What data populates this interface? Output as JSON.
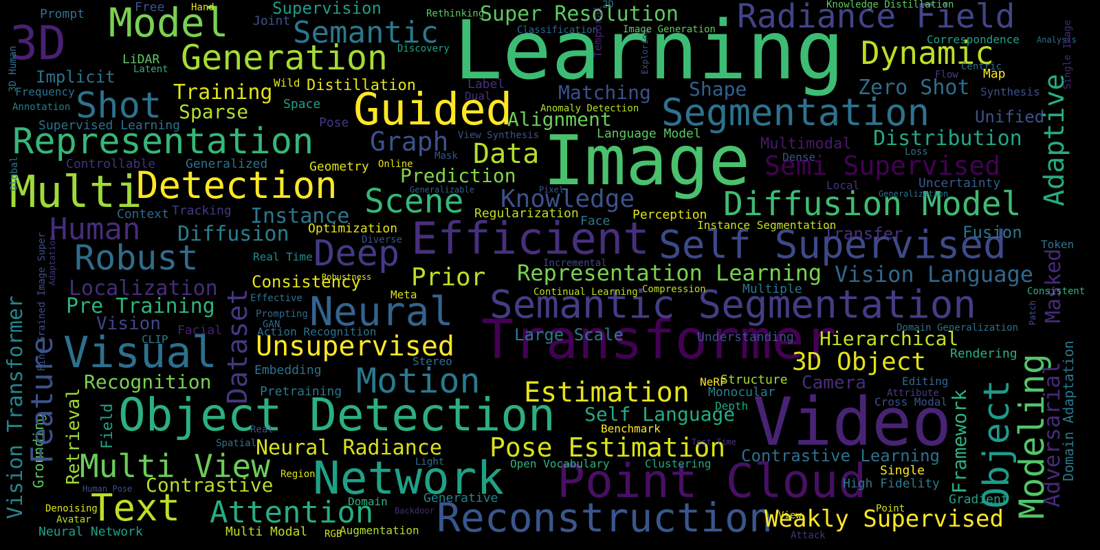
{
  "words": [
    {
      "text": "Learning",
      "color": "#3dbc74"
    },
    {
      "text": "Image",
      "color": "#4ac16d"
    },
    {
      "text": "Video",
      "color": "#482374"
    },
    {
      "text": "Object Detection",
      "color": "#2bb07f"
    },
    {
      "text": "Transformer",
      "color": "#440154"
    },
    {
      "text": "Semantic Segmentation",
      "color": "#433d84"
    },
    {
      "text": "Reconstruction",
      "color": "#39568c"
    },
    {
      "text": "Point Cloud",
      "color": "#471063"
    },
    {
      "text": "Efficient",
      "color": "#472f7d"
    },
    {
      "text": "Network",
      "color": "#1fa187"
    },
    {
      "text": "Neural",
      "color": "#33638d"
    },
    {
      "text": "Visual",
      "color": "#2d708e"
    },
    {
      "text": "Self Supervised",
      "color": "#3e4989"
    },
    {
      "text": "Segmentation",
      "color": "#2c728e"
    },
    {
      "text": "Diffusion Model",
      "color": "#3fbc73"
    },
    {
      "text": "Detection",
      "color": "#fde725"
    },
    {
      "text": "Guided",
      "color": "#fde725"
    },
    {
      "text": "Representation",
      "color": "#35b779"
    },
    {
      "text": "Multi",
      "color": "#a0da39"
    },
    {
      "text": "Generation",
      "color": "#a5db36"
    },
    {
      "text": "Model",
      "color": "#7ad151"
    },
    {
      "text": "3D",
      "color": "#482173"
    },
    {
      "text": "Semantic",
      "color": "#2a788e"
    },
    {
      "text": "Radiance Field",
      "color": "#414487"
    },
    {
      "text": "Dynamic",
      "color": "#bddf26"
    },
    {
      "text": "Text",
      "color": "#bddf26"
    },
    {
      "text": "Attention",
      "color": "#26ad81"
    },
    {
      "text": "Multi View",
      "color": "#6ccd5a"
    },
    {
      "text": "Motion",
      "color": "#2a788e"
    },
    {
      "text": "Robust",
      "color": "#2f6c8e"
    },
    {
      "text": "Deep",
      "color": "#443983"
    },
    {
      "text": "Scene",
      "color": "#35b779"
    },
    {
      "text": "Shot",
      "color": "#2c728e"
    },
    {
      "text": "Unsupervised",
      "color": "#fde725"
    },
    {
      "text": "Estimation",
      "color": "#e5e419"
    },
    {
      "text": "Pose Estimation",
      "color": "#d8e219"
    },
    {
      "text": "3D Object",
      "color": "#e2e418"
    },
    {
      "text": "Prior",
      "color": "#bddf26"
    },
    {
      "text": "Data",
      "color": "#b5de2b"
    },
    {
      "text": "Human",
      "color": "#472c7a"
    },
    {
      "text": "Weakly Supervised",
      "color": "#fde725"
    },
    {
      "text": "Semi Supervised",
      "color": "#440154"
    },
    {
      "text": "Neural Radiance",
      "color": "#d8e219"
    },
    {
      "text": "Representation Learning",
      "color": "#7ad151"
    },
    {
      "text": "Vision Language",
      "color": "#31688e"
    },
    {
      "text": "Zero Shot",
      "color": "#2e6e8e"
    },
    {
      "text": "Distribution",
      "color": "#22a884"
    },
    {
      "text": "Knowledge",
      "color": "#3b528b"
    },
    {
      "text": "Diffusion",
      "color": "#277f8e"
    },
    {
      "text": "Localization",
      "color": "#472d7b"
    },
    {
      "text": "Pre Training",
      "color": "#2fb47c"
    },
    {
      "text": "Contrastive Learning",
      "color": "#2d708e"
    },
    {
      "text": "Contrastive",
      "color": "#b5de2b"
    },
    {
      "text": "Self Language",
      "color": "#25ac82"
    },
    {
      "text": "Hierarchical",
      "color": "#c8e020"
    },
    {
      "text": "Instance",
      "color": "#2a778e"
    },
    {
      "text": "Graph",
      "color": "#3b528b"
    },
    {
      "text": "Alignment",
      "color": "#6ccd5a"
    },
    {
      "text": "Recognition",
      "color": "#7ad151"
    },
    {
      "text": "Prediction",
      "color": "#84d44b"
    },
    {
      "text": "Training",
      "color": "#dfe318"
    },
    {
      "text": "Matching",
      "color": "#3b528b"
    },
    {
      "text": "Shape",
      "color": "#355f8d"
    },
    {
      "text": "Super Resolution",
      "color": "#5ec962"
    },
    {
      "text": "Sparse",
      "color": "#b5de2b"
    },
    {
      "text": "Distillation",
      "color": "#e2e418"
    },
    {
      "text": "Consistency",
      "color": "#e5e419"
    },
    {
      "text": "Implicit",
      "color": "#2c728e"
    },
    {
      "text": "Unified",
      "color": "#3b528b"
    },
    {
      "text": "Large Scale",
      "color": "#2a788e"
    },
    {
      "text": "Vision",
      "color": "#404688"
    },
    {
      "text": "Multimodal",
      "color": "#48186a"
    },
    {
      "text": "Uncertainty",
      "color": "#365c8d"
    },
    {
      "text": "Fusion",
      "color": "#2a768e"
    },
    {
      "text": "Camera",
      "color": "#472d7b"
    },
    {
      "text": "Transfer",
      "color": "#46337f"
    },
    {
      "text": "High Fidelity",
      "color": "#297b8e"
    },
    {
      "text": "Gradient",
      "color": "#20a386"
    },
    {
      "text": "Supervision",
      "color": "#1e9c89"
    },
    {
      "text": "Optimization",
      "color": "#e5e419"
    },
    {
      "text": "Perception",
      "color": "#e2e418"
    },
    {
      "text": "Instance Segmentation",
      "color": "#c8e020"
    },
    {
      "text": "Regularization",
      "color": "#c2df23"
    },
    {
      "text": "Face",
      "color": "#2a788e"
    },
    {
      "text": "Geometry",
      "color": "#e2e418"
    },
    {
      "text": "Space",
      "color": "#20a386"
    },
    {
      "text": "Generalized",
      "color": "#2c728e"
    },
    {
      "text": "Supervised Learning",
      "color": "#2c728e"
    },
    {
      "text": "Language Model",
      "color": "#5ec962"
    },
    {
      "text": "Real Time",
      "color": "#23898e"
    },
    {
      "text": "Embedding",
      "color": "#2c728e"
    },
    {
      "text": "Pretraining",
      "color": "#2a788e"
    },
    {
      "text": "Structure",
      "color": "#a0da39"
    },
    {
      "text": "Monocular",
      "color": "#277f8e"
    },
    {
      "text": "Understanding",
      "color": "#3b528b"
    },
    {
      "text": "Rendering",
      "color": "#2db27d"
    },
    {
      "text": "Editing",
      "color": "#31688e"
    },
    {
      "text": "Cross Modal",
      "color": "#3b528b"
    },
    {
      "text": "Clustering",
      "color": "#22a884"
    },
    {
      "text": "Open Vocabulary",
      "color": "#2fb47c"
    },
    {
      "text": "Benchmark",
      "color": "#fde725"
    },
    {
      "text": "Neural Network",
      "color": "#1fa187"
    },
    {
      "text": "Multi Modal",
      "color": "#bddf26"
    },
    {
      "text": "Augmentation",
      "color": "#b5de2b"
    },
    {
      "text": "Multiple",
      "color": "#2a768e"
    },
    {
      "text": "Tracking",
      "color": "#443983"
    },
    {
      "text": "Context",
      "color": "#31688e"
    },
    {
      "text": "Action Recognition",
      "color": "#2c728e"
    },
    {
      "text": "Stereo",
      "color": "#2c728e"
    },
    {
      "text": "Generative",
      "color": "#26828e"
    },
    {
      "text": "Retrieval",
      "color": "#a0da39"
    },
    {
      "text": "Field",
      "color": "#20a386"
    },
    {
      "text": "Grounding",
      "color": "#5ec962"
    },
    {
      "text": "Vision Transformer",
      "color": "#24868e"
    },
    {
      "text": "Feature",
      "color": "#3b528b"
    },
    {
      "text": "Dataset",
      "color": "#453781"
    },
    {
      "text": "Adaptive",
      "color": "#25ac82"
    },
    {
      "text": "Object",
      "color": "#1e9b8a"
    },
    {
      "text": "Modeling",
      "color": "#52c569"
    },
    {
      "text": "Framework",
      "color": "#2db27d"
    },
    {
      "text": "Adversarial",
      "color": "#482878"
    },
    {
      "text": "Masked",
      "color": "#472a7a"
    },
    {
      "text": "Domain Adaptation",
      "color": "#2a788e"
    },
    {
      "text": "Prompt",
      "color": "#2c728e"
    },
    {
      "text": "Free",
      "color": "#3b528b"
    },
    {
      "text": "Hand",
      "color": "#e5e419"
    },
    {
      "text": "Joint",
      "color": "#3b528b"
    },
    {
      "text": "LiDAR",
      "color": "#5ec962"
    },
    {
      "text": "Latent",
      "color": "#2fb47c"
    },
    {
      "text": "Frequency",
      "color": "#2c728e"
    },
    {
      "text": "Annotation",
      "color": "#277f8e"
    },
    {
      "text": "Wild",
      "color": "#e2e418"
    },
    {
      "text": "Label",
      "color": "#46327e"
    },
    {
      "text": "Dual",
      "color": "#46327e"
    },
    {
      "text": "Pose",
      "color": "#443983"
    },
    {
      "text": "Mask",
      "color": "#3b528b"
    },
    {
      "text": "Online",
      "color": "#e5e419"
    },
    {
      "text": "Pixel",
      "color": "#38588c"
    },
    {
      "text": "Generalizable",
      "color": "#355f8d"
    },
    {
      "text": "Controllable",
      "color": "#46327e"
    },
    {
      "text": "Rethinking",
      "color": "#5ec962"
    },
    {
      "text": "Classification",
      "color": "#31688e"
    },
    {
      "text": "2D",
      "color": "#2c728e"
    },
    {
      "text": "Discovery",
      "color": "#20a386"
    },
    {
      "text": "Temporal",
      "color": "#481f70"
    },
    {
      "text": "Exploring",
      "color": "#3b528b"
    },
    {
      "text": "Image Generation",
      "color": "#5ec962"
    },
    {
      "text": "Knowledge Distillation",
      "color": "#5ec962"
    },
    {
      "text": "Correspondence",
      "color": "#20a386"
    },
    {
      "text": "Analysis",
      "color": "#2c728e"
    },
    {
      "text": "Centric",
      "color": "#2c728e"
    },
    {
      "text": "Flow",
      "color": "#433e85"
    },
    {
      "text": "Map",
      "color": "#fde725"
    },
    {
      "text": "Synthesis",
      "color": "#3b528b"
    },
    {
      "text": "Single Image",
      "color": "#472a7a"
    },
    {
      "text": "View Synthesis",
      "color": "#3b528b"
    },
    {
      "text": "Anomaly Detection",
      "color": "#b5de2b"
    },
    {
      "text": "Dense",
      "color": "#3b528b"
    },
    {
      "text": "Loss",
      "color": "#2c728e"
    },
    {
      "text": "Local",
      "color": "#46327e"
    },
    {
      "text": "Generalization",
      "color": "#2c728e"
    },
    {
      "text": "Token",
      "color": "#2a788e"
    },
    {
      "text": "Consistent",
      "color": "#2fb47c"
    },
    {
      "text": "Patch",
      "color": "#3b528b"
    },
    {
      "text": "Domain Generalization",
      "color": "#2c728e"
    },
    {
      "text": "Diverse",
      "color": "#3b528b"
    },
    {
      "text": "Robustness",
      "color": "#e2e418"
    },
    {
      "text": "Meta",
      "color": "#d8e219"
    },
    {
      "text": "Continual Learning",
      "color": "#c2df23"
    },
    {
      "text": "Compression",
      "color": "#bddf26"
    },
    {
      "text": "Incremental",
      "color": "#3e4989"
    },
    {
      "text": "Effective",
      "color": "#2c728e"
    },
    {
      "text": "Prompting",
      "color": "#31688e"
    },
    {
      "text": "GAN",
      "color": "#31688e"
    },
    {
      "text": "Facial",
      "color": "#482173"
    },
    {
      "text": "CLIP",
      "color": "#2a788e"
    },
    {
      "text": "Global",
      "color": "#2a788e"
    },
    {
      "text": "3D Human",
      "color": "#2c728e"
    },
    {
      "text": "Fine Grained Image Super",
      "color": "#3b528b"
    },
    {
      "text": "Adaptation",
      "color": "#46327e"
    },
    {
      "text": "NeRF",
      "color": "#fde725"
    },
    {
      "text": "Depth",
      "color": "#22a884"
    },
    {
      "text": "Attribute",
      "color": "#433e85"
    },
    {
      "text": "Test Time",
      "color": "#46327e"
    },
    {
      "text": "Single",
      "color": "#fde725"
    },
    {
      "text": "Point",
      "color": "#d8e219"
    },
    {
      "text": "View",
      "color": "#d8e219"
    },
    {
      "text": "Attack",
      "color": "#46327e"
    },
    {
      "text": "Spatial",
      "color": "#2c728e"
    },
    {
      "text": "Real",
      "color": "#3b528b"
    },
    {
      "text": "Light",
      "color": "#2c728e"
    },
    {
      "text": "Region",
      "color": "#e2e418"
    },
    {
      "text": "Human Pose",
      "color": "#3b528b"
    },
    {
      "text": "Denoising",
      "color": "#e2e418"
    },
    {
      "text": "Avatar",
      "color": "#bddf26"
    },
    {
      "text": "Domain",
      "color": "#2fb47c"
    },
    {
      "text": "Backdoor",
      "color": "#472a7a"
    },
    {
      "text": "RGB",
      "color": "#d8e219"
    }
  ]
}
